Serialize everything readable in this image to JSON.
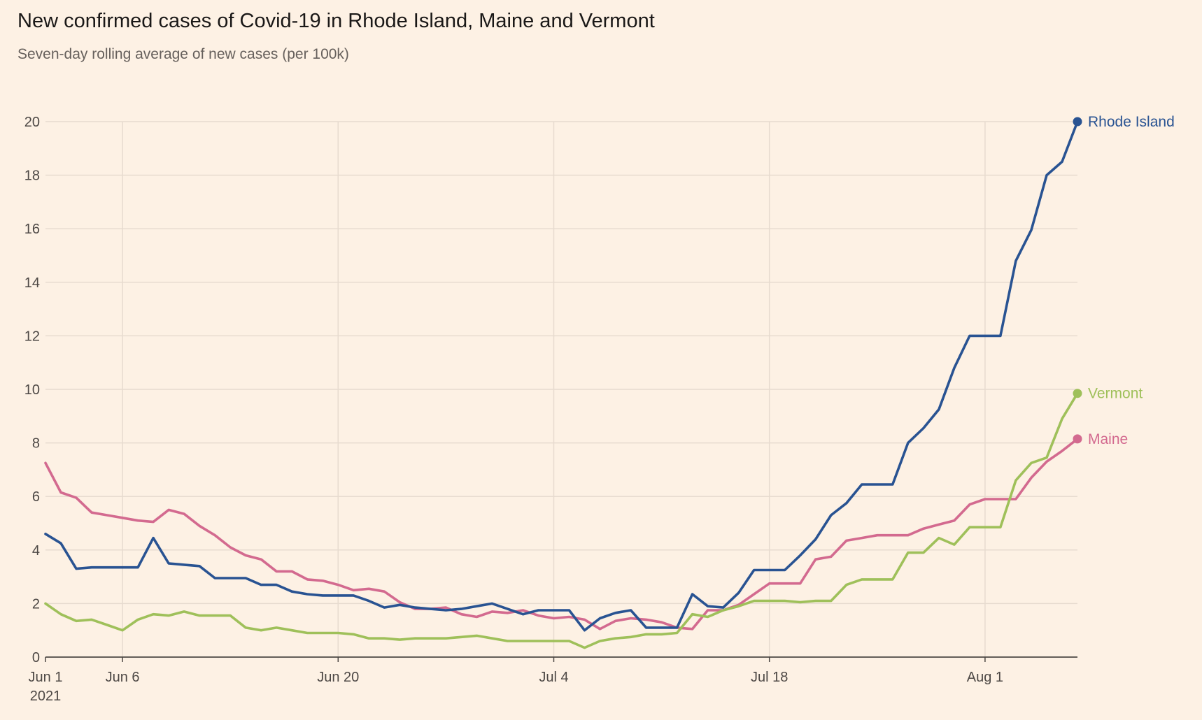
{
  "chart_data": {
    "type": "line",
    "title": "New confirmed cases of Covid-19 in Rhode Island, Maine and Vermont",
    "subtitle": "Seven-day rolling average of new cases (per 100k)",
    "xlabel": "",
    "ylabel": "",
    "x_start": "2021-06-01",
    "x_end": "2021-08-07",
    "ylim": [
      0,
      20
    ],
    "y_ticks": [
      0,
      2,
      4,
      6,
      8,
      10,
      12,
      14,
      16,
      18,
      20
    ],
    "x_ticks": [
      {
        "date": "2021-06-01",
        "label": "Jun 1",
        "sublabel": "2021"
      },
      {
        "date": "2021-06-06",
        "label": "Jun 6",
        "sublabel": ""
      },
      {
        "date": "2021-06-20",
        "label": "Jun 20",
        "sublabel": ""
      },
      {
        "date": "2021-07-04",
        "label": "Jul 4",
        "sublabel": ""
      },
      {
        "date": "2021-07-18",
        "label": "Jul 18",
        "sublabel": ""
      },
      {
        "date": "2021-08-01",
        "label": "Aug 1",
        "sublabel": ""
      }
    ],
    "grid": true,
    "legend": "end-of-line labels",
    "series": [
      {
        "name": "Maine",
        "color": "#d36a8f",
        "values": [
          7.25,
          6.15,
          5.95,
          5.4,
          5.3,
          5.2,
          5.1,
          5.05,
          5.5,
          5.35,
          4.9,
          4.55,
          4.1,
          3.8,
          3.65,
          3.2,
          3.2,
          2.9,
          2.85,
          2.7,
          2.5,
          2.55,
          2.45,
          2.05,
          1.8,
          1.8,
          1.85,
          1.6,
          1.5,
          1.7,
          1.65,
          1.75,
          1.55,
          1.45,
          1.5,
          1.4,
          1.05,
          1.35,
          1.45,
          1.4,
          1.3,
          1.1,
          1.05,
          1.75,
          1.75,
          1.95,
          2.35,
          2.75,
          2.75,
          2.75,
          3.65,
          3.75,
          4.35,
          4.45,
          4.55,
          4.55,
          4.55,
          4.8,
          4.95,
          5.1,
          5.7,
          5.9,
          5.9,
          5.9,
          6.7,
          7.3,
          7.7,
          8.15
        ]
      },
      {
        "name": "Rhode Island",
        "color": "#295392",
        "values": [
          4.6,
          4.25,
          3.3,
          3.35,
          3.35,
          3.35,
          3.35,
          4.45,
          3.5,
          3.45,
          3.4,
          2.95,
          2.95,
          2.95,
          2.7,
          2.7,
          2.45,
          2.35,
          2.3,
          2.3,
          2.3,
          2.1,
          1.85,
          1.95,
          1.85,
          1.8,
          1.75,
          1.8,
          1.9,
          2.0,
          1.8,
          1.6,
          1.75,
          1.75,
          1.75,
          1.0,
          1.45,
          1.65,
          1.75,
          1.1,
          1.1,
          1.1,
          2.35,
          1.9,
          1.85,
          2.4,
          3.25,
          3.25,
          3.25,
          3.8,
          4.4,
          5.3,
          5.75,
          6.45,
          6.45,
          6.45,
          8.0,
          8.55,
          9.25,
          10.8,
          12.0,
          12.0,
          12.0,
          14.8,
          15.95,
          18.0,
          18.5,
          20.0
        ]
      },
      {
        "name": "Vermont",
        "color": "#9fc05a",
        "values": [
          2.0,
          1.6,
          1.35,
          1.4,
          1.2,
          1.0,
          1.4,
          1.6,
          1.55,
          1.7,
          1.55,
          1.55,
          1.55,
          1.1,
          1.0,
          1.1,
          1.0,
          0.9,
          0.9,
          0.9,
          0.85,
          0.7,
          0.7,
          0.65,
          0.7,
          0.7,
          0.7,
          0.75,
          0.8,
          0.7,
          0.6,
          0.6,
          0.6,
          0.6,
          0.6,
          0.35,
          0.6,
          0.7,
          0.75,
          0.85,
          0.85,
          0.9,
          1.6,
          1.5,
          1.75,
          1.9,
          2.1,
          2.1,
          2.1,
          2.05,
          2.1,
          2.1,
          2.7,
          2.9,
          2.9,
          2.9,
          3.9,
          3.9,
          4.45,
          4.2,
          4.85,
          4.85,
          4.85,
          6.6,
          7.25,
          7.45,
          8.9,
          9.85
        ]
      }
    ]
  }
}
